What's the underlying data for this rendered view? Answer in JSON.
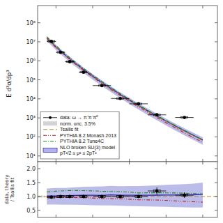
{
  "chart_data": [
    {
      "type": "line",
      "y_label": "E d³σ/dp³",
      "log": "y",
      "xlim": [
        1.0,
        10.8
      ],
      "ylim": [
        5,
        800000000
      ],
      "xticks": [
        2,
        4,
        6,
        8,
        10
      ],
      "yticks": [
        {
          "value": 10,
          "label": "10¹"
        },
        {
          "value": 100,
          "label": "10²"
        },
        {
          "value": 1000,
          "label": "10³"
        },
        {
          "value": 10000,
          "label": "10⁴"
        },
        {
          "value": 100000,
          "label": "10⁵"
        },
        {
          "value": 1000000,
          "label": "10⁶"
        },
        {
          "value": 10000000,
          "label": "10⁷"
        },
        {
          "value": 100000000,
          "label": "10⁸"
        }
      ],
      "grid": false,
      "legend": "lower left",
      "tick_labels": "y",
      "series": [
        {
          "name": "data: ω → π⁺π⁻π⁰",
          "type": "scatter",
          "color": "#000000",
          "x": [
            1.75,
            2.25,
            2.75,
            3.5,
            4.5,
            5.5,
            6.5,
            7.5,
            9.0
          ],
          "values": [
            10500000,
            2800000,
            900000,
            250000,
            50000,
            10500,
            5500,
            1450,
            1050
          ],
          "error_lo": [
            800000,
            220000,
            70000,
            20000,
            4000,
            800,
            450,
            120,
            100
          ],
          "error_hi": [
            800000,
            220000,
            70000,
            20000,
            4000,
            800,
            450,
            120,
            100
          ],
          "x_error": [
            0.25,
            0.25,
            0.25,
            0.25,
            0.5,
            0.5,
            0.5,
            0.5,
            0.5
          ],
          "syst_lo": [
            9660000,
            2576000,
            828000,
            230000,
            46000,
            9660,
            5060,
            1334,
            966
          ],
          "syst_hi": [
            11340000,
            3024000,
            972000,
            270000,
            54000,
            11340,
            5940,
            1566,
            1134
          ]
        },
        {
          "name": "Tsallis fit",
          "type": "line",
          "color": "#bb8833",
          "line_style": "dashed",
          "x": [
            1.5,
            2.0,
            2.5,
            3.0,
            3.5,
            4.0,
            4.5,
            5.0,
            5.5,
            6.0,
            6.5,
            7.0,
            7.5,
            8.0,
            8.5,
            9.0,
            9.5,
            10.0
          ],
          "values": [
            15500000,
            5200000,
            1950000,
            780000,
            330000,
            148000,
            69000,
            33000,
            16200,
            8200,
            4250,
            2230,
            1190,
            645,
            355,
            198,
            112,
            64
          ]
        },
        {
          "name": "PYTHIA 8.2 Monash 2013",
          "type": "line",
          "color": "#bb2222",
          "line_style": "dashdotdot",
          "x": [
            1.5,
            2.0,
            2.5,
            3.0,
            3.5,
            4.0,
            4.5,
            5.0,
            5.5,
            6.0,
            6.5,
            7.0,
            7.5,
            8.0,
            8.5,
            9.0,
            9.5,
            10.0
          ],
          "values": [
            15000000,
            5000000,
            1880000,
            750000,
            315000,
            140000,
            64000,
            30500,
            14900,
            7400,
            3750,
            1960,
            1040,
            555,
            300,
            164,
            91,
            51
          ]
        },
        {
          "name": "PYTHIA 8.2 Tune4C",
          "type": "line",
          "color": "#228822",
          "line_style": "dashdot",
          "x": [
            1.5,
            2.0,
            2.5,
            3.0,
            3.5,
            4.0,
            4.5,
            5.0,
            5.5,
            6.0,
            6.5,
            7.0,
            7.5,
            8.0,
            8.5,
            9.0,
            9.5,
            10.0
          ],
          "values": [
            18000000,
            6200000,
            2360000,
            950000,
            400000,
            178000,
            82000,
            39000,
            19000,
            9500,
            4800,
            2530,
            1350,
            730,
            400,
            222,
            124,
            70
          ]
        },
        {
          "name": "NLO broken SU(3) model\npT²/2 ≤ μ² ≤ 2pT²",
          "type": "band",
          "color": "#2222bb",
          "x": [
            1.5,
            2.0,
            2.5,
            3.0,
            3.5,
            4.0,
            4.5,
            5.0,
            5.5,
            6.0,
            6.5,
            7.0,
            7.5,
            8.0,
            8.5,
            9.0,
            9.5,
            10.0
          ],
          "values": [
            15800000,
            5300000,
            2000000,
            810000,
            345000,
            155000,
            72000,
            35000,
            17000,
            8600,
            4450,
            2340,
            1250,
            680,
            374,
            209,
            119,
            69
          ],
          "lower": [
            11000000,
            3700000,
            1380000,
            550000,
            232000,
            102000,
            47000,
            22500,
            10800,
            5400,
            2750,
            1430,
            755,
            405,
            220,
            121,
            68,
            39
          ],
          "upper": [
            20000000,
            6800000,
            2550000,
            1040000,
            445000,
            201000,
            94000,
            45500,
            22200,
            11300,
            5850,
            3100,
            1670,
            915,
            508,
            286,
            164,
            96
          ]
        }
      ]
    },
    {
      "type": "line",
      "y_label": "data, theory\n/ Tsallis fit",
      "xlim": [
        1.0,
        10.8
      ],
      "ylim": [
        0.25,
        2.25
      ],
      "xticks": [
        2,
        4,
        6,
        8,
        10
      ],
      "yticks": [
        0.5,
        {
          "value": 1.0,
          "label": "1.0"
        },
        1.5,
        {
          "value": 2.0,
          "label": "2.0"
        }
      ],
      "grid": false,
      "tick_labels": "y",
      "series": [
        {
          "type": "scatter",
          "color": "#000000",
          "x": [
            1.75,
            2.25,
            2.75,
            3.5,
            4.5,
            5.5,
            6.5,
            7.5,
            9.0
          ],
          "values": [
            0.98,
            1.0,
            1.0,
            1.0,
            1.0,
            1.0,
            1.0,
            1.2,
            1.05
          ],
          "error": [
            0.06,
            0.05,
            0.04,
            0.04,
            0.04,
            0.04,
            0.04,
            0.13,
            0.1
          ],
          "x_error": [
            0.25,
            0.25,
            0.25,
            0.25,
            0.5,
            0.5,
            0.5,
            0.5,
            0.5
          ],
          "syst_lo": [
            0.9457,
            0.965,
            0.965,
            0.965,
            0.965,
            0.965,
            0.965,
            1.158,
            1.01325
          ],
          "syst_hi": [
            1.0143,
            1.035,
            1.035,
            1.035,
            1.035,
            1.035,
            1.035,
            1.242,
            1.08675
          ]
        },
        {
          "name": "norm. unc. 3.5%",
          "type": "band",
          "color": "#808080",
          "x": [
            1.0,
            1.4
          ],
          "lower": [
            0.965,
            0.965
          ],
          "upper": [
            1.035,
            1.035
          ]
        },
        {
          "type": "hline",
          "color": "#bb8833",
          "line_style": "dashed",
          "values": [
            1.0
          ]
        },
        {
          "type": "line",
          "color": "#bb2222",
          "line_style": "dashdotdot",
          "x": [
            1.5,
            2.0,
            2.5,
            3.0,
            3.5,
            4.0,
            4.5,
            5.0,
            5.5,
            6.0,
            6.5,
            7.0,
            7.5,
            8.0,
            8.5,
            9.0,
            9.5,
            10.0
          ],
          "values": [
            0.968,
            0.962,
            0.964,
            0.962,
            0.955,
            0.946,
            0.928,
            0.924,
            0.92,
            0.902,
            0.882,
            0.879,
            0.874,
            0.861,
            0.845,
            0.828,
            0.812,
            0.797
          ]
        },
        {
          "type": "line",
          "color": "#228822",
          "line_style": "dashdot",
          "x": [
            1.5,
            2.0,
            2.5,
            3.0,
            3.5,
            4.0,
            4.5,
            5.0,
            5.5,
            6.0,
            6.5,
            7.0,
            7.5,
            8.0,
            8.5,
            9.0,
            9.5,
            10.0
          ],
          "values": [
            1.161,
            1.192,
            1.21,
            1.218,
            1.212,
            1.203,
            1.188,
            1.182,
            1.173,
            1.159,
            1.129,
            1.134,
            1.134,
            1.133,
            1.127,
            1.121,
            1.107,
            1.094
          ]
        },
        {
          "type": "band",
          "color": "#2222bb",
          "x": [
            1.5,
            2.0,
            2.5,
            3.0,
            3.5,
            4.0,
            4.5,
            5.0,
            5.5,
            6.0,
            6.5,
            7.0,
            7.5,
            8.0,
            8.5,
            9.0,
            9.5,
            10.0
          ],
          "values": [
            1.019,
            1.019,
            1.026,
            1.038,
            1.045,
            1.047,
            1.043,
            1.061,
            1.049,
            1.049,
            1.047,
            1.049,
            1.05,
            1.054,
            1.053,
            1.056,
            1.063,
            1.078
          ],
          "lower": [
            0.71,
            0.712,
            0.708,
            0.705,
            0.703,
            0.689,
            0.681,
            0.682,
            0.667,
            0.659,
            0.647,
            0.641,
            0.635,
            0.629,
            0.62,
            0.611,
            0.607,
            0.609
          ],
          "upper": [
            1.29,
            1.308,
            1.308,
            1.333,
            1.348,
            1.358,
            1.362,
            1.379,
            1.37,
            1.378,
            1.376,
            1.39,
            1.403,
            1.42,
            1.43,
            1.444,
            1.464,
            1.5
          ]
        }
      ]
    }
  ]
}
